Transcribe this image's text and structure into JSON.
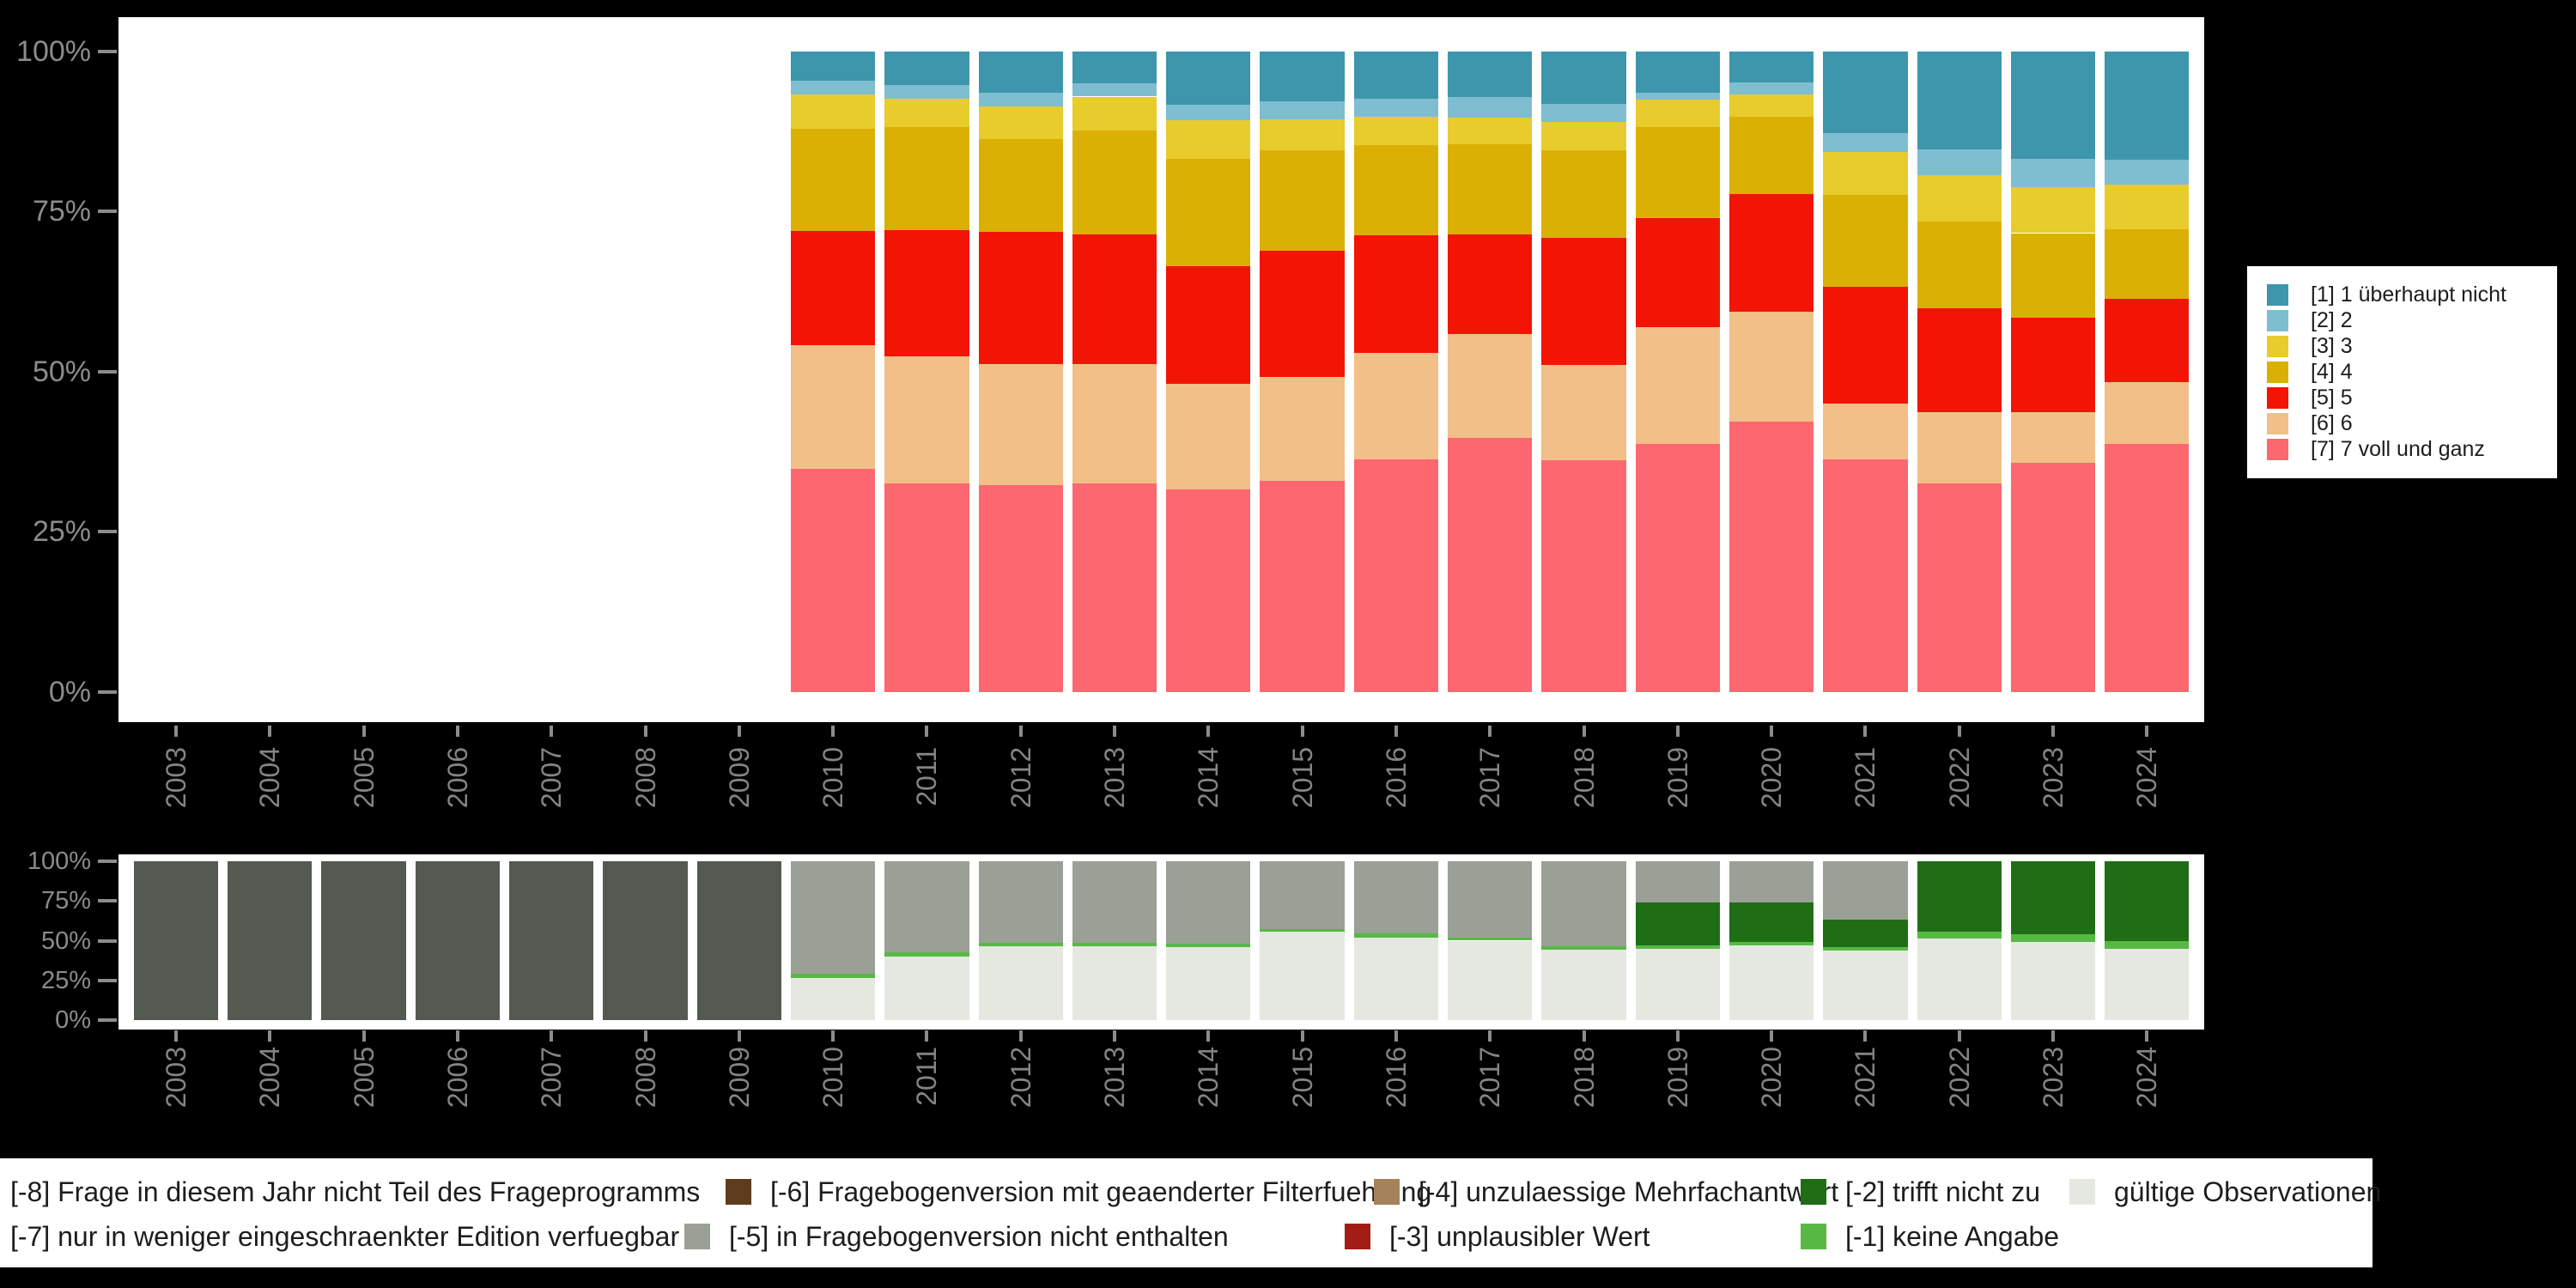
{
  "page": {
    "background_color": "#000000",
    "panel_color": "#ffffff",
    "axis_text_color": "#8c8c8c"
  },
  "chart_data": [
    {
      "id": "answer-distribution",
      "type": "bar",
      "stacked": true,
      "unit": "percent",
      "ylim": [
        0,
        100
      ],
      "y_ticks": [
        "0%",
        "25%",
        "50%",
        "75%",
        "100%"
      ],
      "legend_position": "right",
      "categories": [
        "2003",
        "2004",
        "2005",
        "2006",
        "2007",
        "2008",
        "2009",
        "2010",
        "2011",
        "2012",
        "2013",
        "2014",
        "2015",
        "2016",
        "2017",
        "2018",
        "2019",
        "2020",
        "2021",
        "2022",
        "2023",
        "2024"
      ],
      "series": [
        {
          "name": "[7] 7 voll und ganz",
          "color": "#FC6770",
          "values": [
            null,
            null,
            null,
            null,
            null,
            null,
            null,
            34.8,
            32.6,
            32.3,
            32.6,
            31.6,
            32.9,
            36.3,
            39.6,
            36.2,
            38.7,
            42.2,
            36.3,
            32.5,
            35.8,
            38.7
          ]
        },
        {
          "name": "[6] 6",
          "color": "#F1BF87",
          "values": [
            null,
            null,
            null,
            null,
            null,
            null,
            null,
            19.3,
            19.8,
            18.9,
            18.6,
            16.5,
            16.2,
            16.6,
            16.2,
            14.9,
            18.2,
            17.1,
            8.7,
            11.2,
            7.9,
            9.6
          ]
        },
        {
          "name": "[5] 5",
          "color": "#F21405",
          "values": [
            null,
            null,
            null,
            null,
            null,
            null,
            null,
            17.8,
            19.7,
            20.6,
            20.2,
            18.4,
            19.7,
            18.4,
            15.6,
            19.8,
            17.1,
            18.4,
            18.2,
            16.2,
            14.7,
            13.0
          ]
        },
        {
          "name": "[4] 4",
          "color": "#DBB005",
          "values": [
            null,
            null,
            null,
            null,
            null,
            null,
            null,
            16.0,
            16.0,
            14.5,
            16.2,
            16.7,
            15.7,
            14.0,
            14.1,
            13.6,
            14.2,
            12.1,
            14.3,
            13.5,
            13.2,
            10.9
          ]
        },
        {
          "name": "[3] 3",
          "color": "#E8CB2D",
          "values": [
            null,
            null,
            null,
            null,
            null,
            null,
            null,
            5.3,
            4.4,
            5.0,
            5.3,
            6.0,
            4.8,
            4.4,
            4.1,
            4.5,
            4.2,
            3.5,
            6.8,
            7.3,
            7.2,
            7.0
          ]
        },
        {
          "name": "[2] 2",
          "color": "#7FBDD1",
          "values": [
            null,
            null,
            null,
            null,
            null,
            null,
            null,
            2.2,
            2.2,
            2.2,
            2.1,
            2.4,
            2.8,
            2.9,
            3.2,
            2.7,
            1.1,
            1.8,
            2.9,
            4.0,
            4.4,
            3.9
          ]
        },
        {
          "name": "[1] 1 überhaupt nicht",
          "color": "#3D96AC",
          "values": [
            null,
            null,
            null,
            null,
            null,
            null,
            null,
            4.6,
            5.3,
            6.5,
            5.0,
            8.4,
            7.9,
            7.4,
            7.2,
            8.3,
            6.5,
            4.9,
            12.8,
            15.3,
            16.8,
            16.9
          ]
        }
      ]
    },
    {
      "id": "missing-values",
      "type": "bar",
      "stacked": true,
      "unit": "percent",
      "ylim": [
        0,
        100
      ],
      "y_ticks": [
        "0%",
        "25%",
        "50%",
        "75%",
        "100%"
      ],
      "legend_position": "bottom",
      "categories": [
        "2003",
        "2004",
        "2005",
        "2006",
        "2007",
        "2008",
        "2009",
        "2010",
        "2011",
        "2012",
        "2013",
        "2014",
        "2015",
        "2016",
        "2017",
        "2018",
        "2019",
        "2020",
        "2021",
        "2022",
        "2023",
        "2024"
      ],
      "series": [
        {
          "name": "gültige Observationen",
          "color": "#E4E8E1",
          "values": [
            0,
            0,
            0,
            0,
            0,
            0,
            0,
            26.5,
            40,
            46.5,
            46.5,
            46,
            55.5,
            52,
            50,
            44.5,
            45,
            46.8,
            44,
            51.5,
            49.2,
            45
          ]
        },
        {
          "name": "[-1] keine Angabe",
          "color": "#57B944",
          "values": [
            0,
            0,
            0,
            0,
            0,
            0,
            0,
            2.5,
            2.5,
            2,
            2,
            2,
            2,
            2.5,
            2,
            2,
            2,
            2.6,
            2,
            4,
            4.8,
            4.5
          ]
        },
        {
          "name": "[-2] trifft nicht zu",
          "color": "#1F6E16",
          "values": [
            0,
            0,
            0,
            0,
            0,
            0,
            0,
            0,
            0,
            0,
            0,
            0,
            0,
            0,
            0,
            0,
            27,
            24.6,
            17.5,
            44.5,
            46,
            50.5
          ]
        },
        {
          "name": "[-5] in Fragebogenversion nicht enthalten",
          "color": "#9AA096",
          "values": [
            0,
            0,
            0,
            0,
            0,
            0,
            0,
            71,
            57.5,
            51.5,
            51.5,
            52,
            42.5,
            45.5,
            48,
            53.5,
            26,
            26,
            36.5,
            0,
            0,
            0
          ]
        },
        {
          "name": "[-8] Frage in diesem Jahr nicht Teil des Frageprogramms",
          "color": "#545A52",
          "values": [
            100,
            100,
            100,
            100,
            100,
            100,
            100,
            0,
            0,
            0,
            0,
            0,
            0,
            0,
            0,
            0,
            0,
            0,
            0,
            0,
            0,
            0
          ]
        }
      ]
    }
  ],
  "right_legend": {
    "items": [
      {
        "label": "[1] 1 überhaupt nicht",
        "color": "#3D96AC"
      },
      {
        "label": "[2] 2",
        "color": "#7FBDD1"
      },
      {
        "label": "[3] 3",
        "color": "#E8CB2D"
      },
      {
        "label": "[4] 4",
        "color": "#DBB005"
      },
      {
        "label": "[5] 5",
        "color": "#F21405"
      },
      {
        "label": "[6] 6",
        "color": "#F1BF87"
      },
      {
        "label": "[7] 7 voll und ganz",
        "color": "#FC6770"
      }
    ]
  },
  "bottom_legend": {
    "rows": [
      {
        "items": [
          {
            "label": "[-8] Frage in diesem Jahr nicht Teil des Frageprogramms",
            "color": "#545A52"
          },
          {
            "label": "[-6] Fragebogenversion mit geaenderter Filterfuehrung",
            "color": "#5F3C1E"
          },
          {
            "label": "[-4] unzulaessige Mehrfachantwort",
            "color": "#A6825A"
          },
          {
            "label": "[-2] trifft nicht zu",
            "color": "#1F6E16"
          },
          {
            "label": "gültige Observationen",
            "color": "#E4E8E1"
          }
        ]
      },
      {
        "items": [
          {
            "label": "[-7] nur in weniger eingeschraenkter Edition verfuegbar",
            "color": null
          },
          {
            "label": "[-5] in Fragebogenversion nicht enthalten",
            "color": "#9AA096"
          },
          {
            "label": "[-3] unplausibler Wert",
            "color": "#A21C16"
          },
          {
            "label": "[-1] keine Angabe",
            "color": "#57B944"
          }
        ]
      }
    ]
  }
}
